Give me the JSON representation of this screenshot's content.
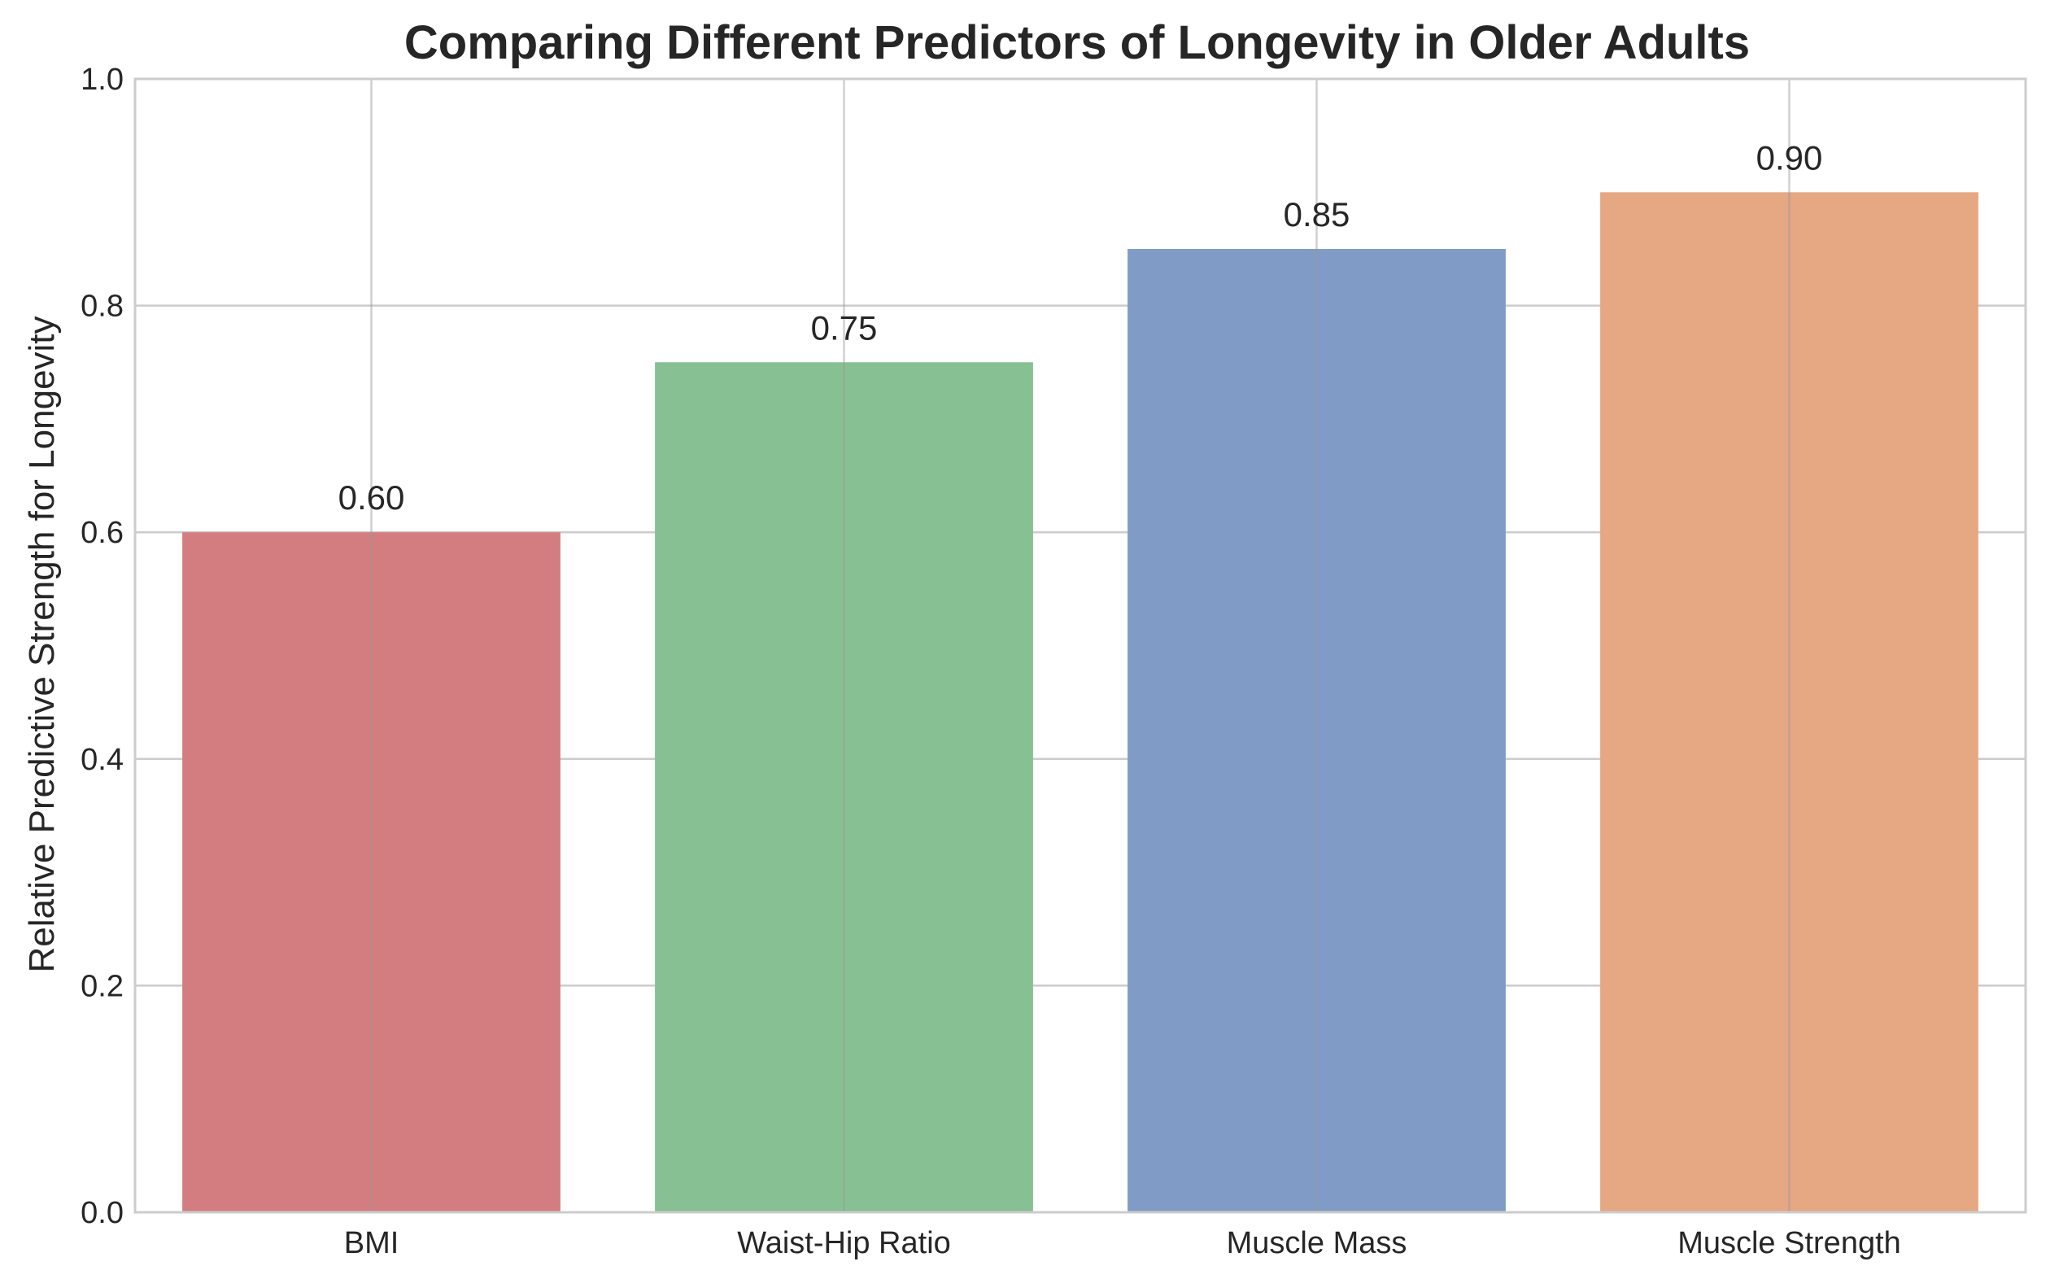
{
  "chart_data": {
    "type": "bar",
    "title": "Comparing Different Predictors of Longevity in Older Adults",
    "xlabel": "",
    "ylabel": "Relative Predictive Strength for Longevity",
    "categories": [
      "BMI",
      "Waist-Hip Ratio",
      "Muscle Mass",
      "Muscle Strength"
    ],
    "values": [
      0.6,
      0.75,
      0.85,
      0.9
    ],
    "value_labels": [
      "0.60",
      "0.75",
      "0.85",
      "0.90"
    ],
    "colors": [
      "#d47d80",
      "#86c093",
      "#809cc6",
      "#e6a783"
    ],
    "ylim": [
      0,
      1.0
    ],
    "yticks": [
      0.0,
      0.2,
      0.4,
      0.6,
      0.8,
      1.0
    ],
    "ytick_labels": [
      "0.0",
      "0.2",
      "0.4",
      "0.6",
      "0.8",
      "1.0"
    ],
    "grid": true,
    "legend": "none"
  }
}
